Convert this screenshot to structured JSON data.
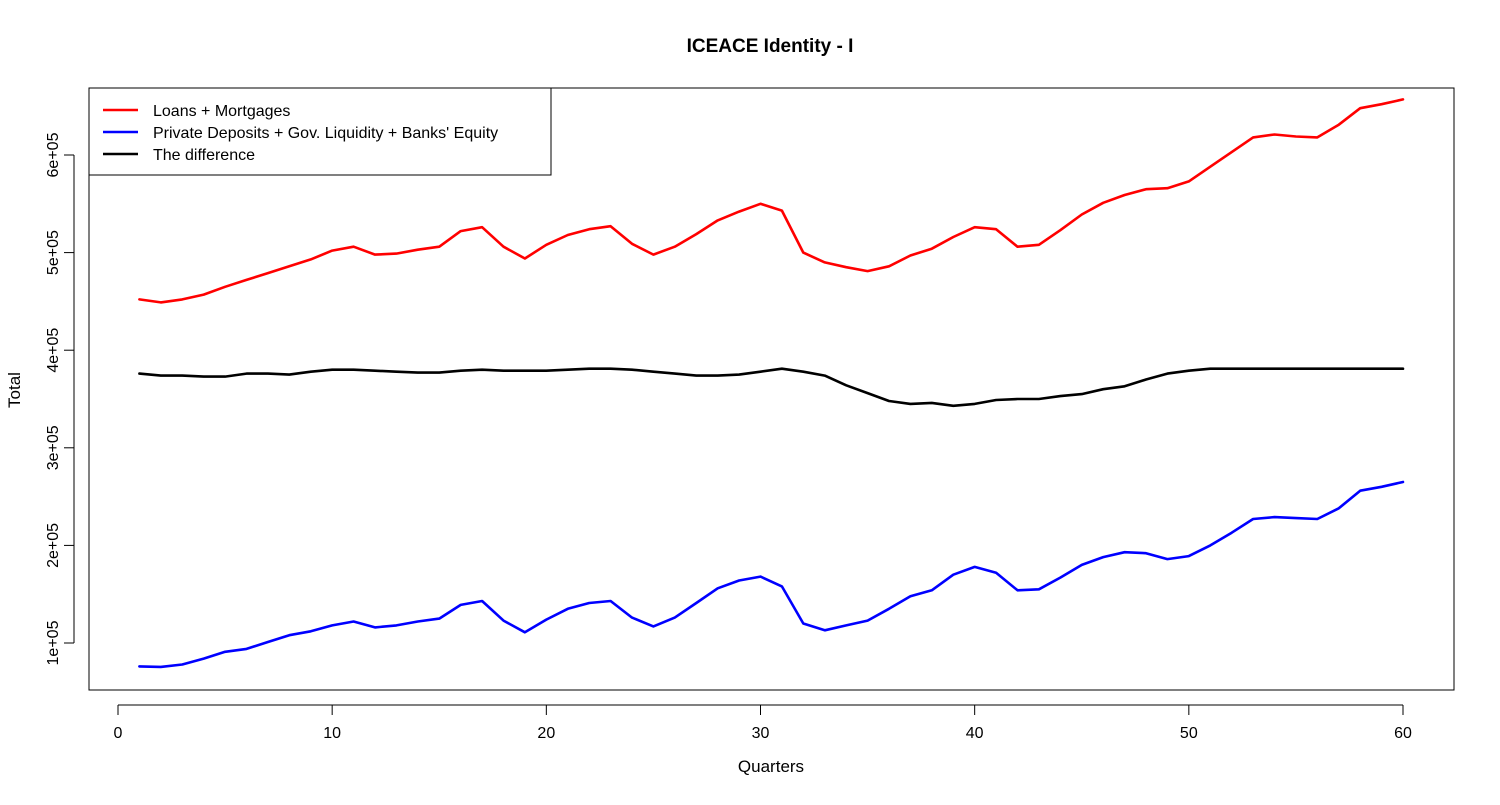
{
  "chart_data": {
    "type": "line",
    "title": "ICEACE Identity - I",
    "xlabel": "Quarters",
    "ylabel": "Total",
    "xlim": [
      0,
      60
    ],
    "ylim": [
      50000,
      700000
    ],
    "x_ticks": [
      0,
      10,
      20,
      30,
      40,
      50,
      60
    ],
    "x_tick_labels": [
      "0",
      "10",
      "20",
      "30",
      "40",
      "50",
      "60"
    ],
    "y_ticks": [
      100000,
      200000,
      300000,
      400000,
      500000,
      600000
    ],
    "y_tick_labels": [
      "1e+05",
      "2e+05",
      "3e+05",
      "4e+05",
      "5e+05",
      "6e+05"
    ],
    "grid": false,
    "legend_position": "top-left",
    "x": [
      1,
      2,
      3,
      4,
      5,
      6,
      7,
      8,
      9,
      10,
      11,
      12,
      13,
      14,
      15,
      16,
      17,
      18,
      19,
      20,
      21,
      22,
      23,
      24,
      25,
      26,
      27,
      28,
      29,
      30,
      31,
      32,
      33,
      34,
      35,
      36,
      37,
      38,
      39,
      40,
      41,
      42,
      43,
      44,
      45,
      46,
      47,
      48,
      49,
      50,
      51,
      52,
      53,
      54,
      55,
      56,
      57,
      58,
      59,
      60
    ],
    "series": [
      {
        "name": "Loans + Mortgages",
        "color": "#ff0000",
        "values": [
          452000,
          449000,
          452000,
          457000,
          465000,
          472000,
          479000,
          486000,
          493000,
          502000,
          506000,
          498000,
          499000,
          503000,
          506000,
          522000,
          526000,
          506000,
          494000,
          508000,
          518000,
          524000,
          527000,
          509000,
          498000,
          506000,
          519000,
          533000,
          542000,
          550000,
          543000,
          500000,
          490000,
          485000,
          481000,
          486000,
          497000,
          504000,
          516000,
          526000,
          524000,
          506000,
          508000,
          523000,
          539000,
          551000,
          559000,
          565000,
          566000,
          573000,
          588000,
          603000,
          618000,
          621000,
          619000,
          618000,
          631000,
          648000,
          652000,
          657000
        ]
      },
      {
        "name": "Private Deposits + Gov. Liquidity + Banks' Equity",
        "color": "#0000ff",
        "values": [
          76000,
          75500,
          78000,
          84000,
          91000,
          94000,
          101000,
          108000,
          112000,
          118000,
          122000,
          116000,
          118000,
          122000,
          125000,
          139000,
          143000,
          123000,
          111000,
          124000,
          135000,
          141000,
          143000,
          126000,
          117000,
          126000,
          141000,
          156000,
          164000,
          168000,
          158000,
          120000,
          113000,
          118000,
          123000,
          135000,
          148000,
          154000,
          170000,
          178000,
          172000,
          154000,
          155000,
          167000,
          180000,
          188000,
          193000,
          192000,
          186000,
          189000,
          200000,
          213000,
          227000,
          229000,
          228000,
          227000,
          238000,
          256000,
          260000,
          265000
        ]
      },
      {
        "name": "The difference",
        "color": "#000000",
        "values": [
          376000,
          374000,
          374000,
          373000,
          373000,
          376000,
          376000,
          375000,
          378000,
          380000,
          380000,
          379000,
          378000,
          377000,
          377000,
          379000,
          380000,
          379000,
          379000,
          379000,
          380000,
          381000,
          381000,
          380000,
          378000,
          376000,
          374000,
          374000,
          375000,
          378000,
          381000,
          378000,
          374000,
          364000,
          356000,
          348000,
          345000,
          346000,
          343000,
          345000,
          349000,
          350000,
          350000,
          353000,
          355000,
          360000,
          363000,
          370000,
          376000,
          379000,
          381000,
          381000,
          381000,
          381000,
          381000,
          381000,
          381000,
          381000,
          381000,
          381000
        ]
      }
    ]
  }
}
